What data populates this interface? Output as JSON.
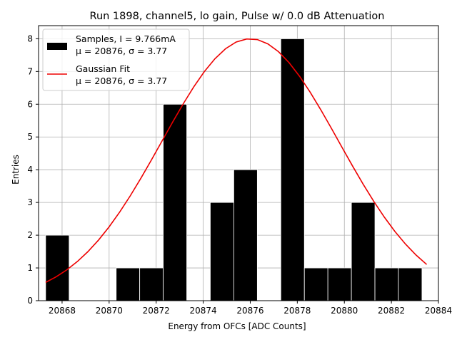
{
  "chart_data": {
    "type": "bar",
    "title": "Run 1898, channel5, lo gain, Pulse w/ 0.0 dB Attenuation",
    "xlabel": "Energy from OFCs [ADC Counts]",
    "ylabel": "Entries",
    "xlim": [
      20867.0,
      20884.0
    ],
    "ylim": [
      0,
      8.4
    ],
    "x_ticks": [
      20868,
      20870,
      20872,
      20874,
      20876,
      20878,
      20880,
      20882,
      20884
    ],
    "y_ticks": [
      0,
      1,
      2,
      3,
      4,
      5,
      6,
      7,
      8
    ],
    "grid": true,
    "legend_position": "top-left",
    "colors": {
      "bars": "#000000",
      "bar_edge": "#ffffff",
      "fit": "#ee0000",
      "grid": "#b0b0b0"
    },
    "histogram": {
      "label_line1": "Samples, I = 9.766mA",
      "label_line2": "μ = 20876, σ = 3.77",
      "bins": [
        {
          "x0": 20867.3,
          "x1": 20868.3,
          "count": 2
        },
        {
          "x0": 20870.3,
          "x1": 20871.3,
          "count": 1
        },
        {
          "x0": 20871.3,
          "x1": 20872.3,
          "count": 1
        },
        {
          "x0": 20872.3,
          "x1": 20873.3,
          "count": 6
        },
        {
          "x0": 20874.3,
          "x1": 20875.3,
          "count": 3
        },
        {
          "x0": 20875.3,
          "x1": 20876.3,
          "count": 4
        },
        {
          "x0": 20877.3,
          "x1": 20878.3,
          "count": 8
        },
        {
          "x0": 20878.3,
          "x1": 20879.3,
          "count": 1
        },
        {
          "x0": 20879.3,
          "x1": 20880.3,
          "count": 1
        },
        {
          "x0": 20880.3,
          "x1": 20881.3,
          "count": 3
        },
        {
          "x0": 20881.3,
          "x1": 20882.3,
          "count": 1
        },
        {
          "x0": 20882.3,
          "x1": 20883.3,
          "count": 1
        }
      ]
    },
    "fit": {
      "label_line1": "Gaussian Fit",
      "label_line2": "μ = 20876, σ = 3.77",
      "mu": 20876.0,
      "sigma": 3.77,
      "amplitude": 8.0,
      "x_range": [
        20867.3,
        20883.5
      ]
    }
  }
}
